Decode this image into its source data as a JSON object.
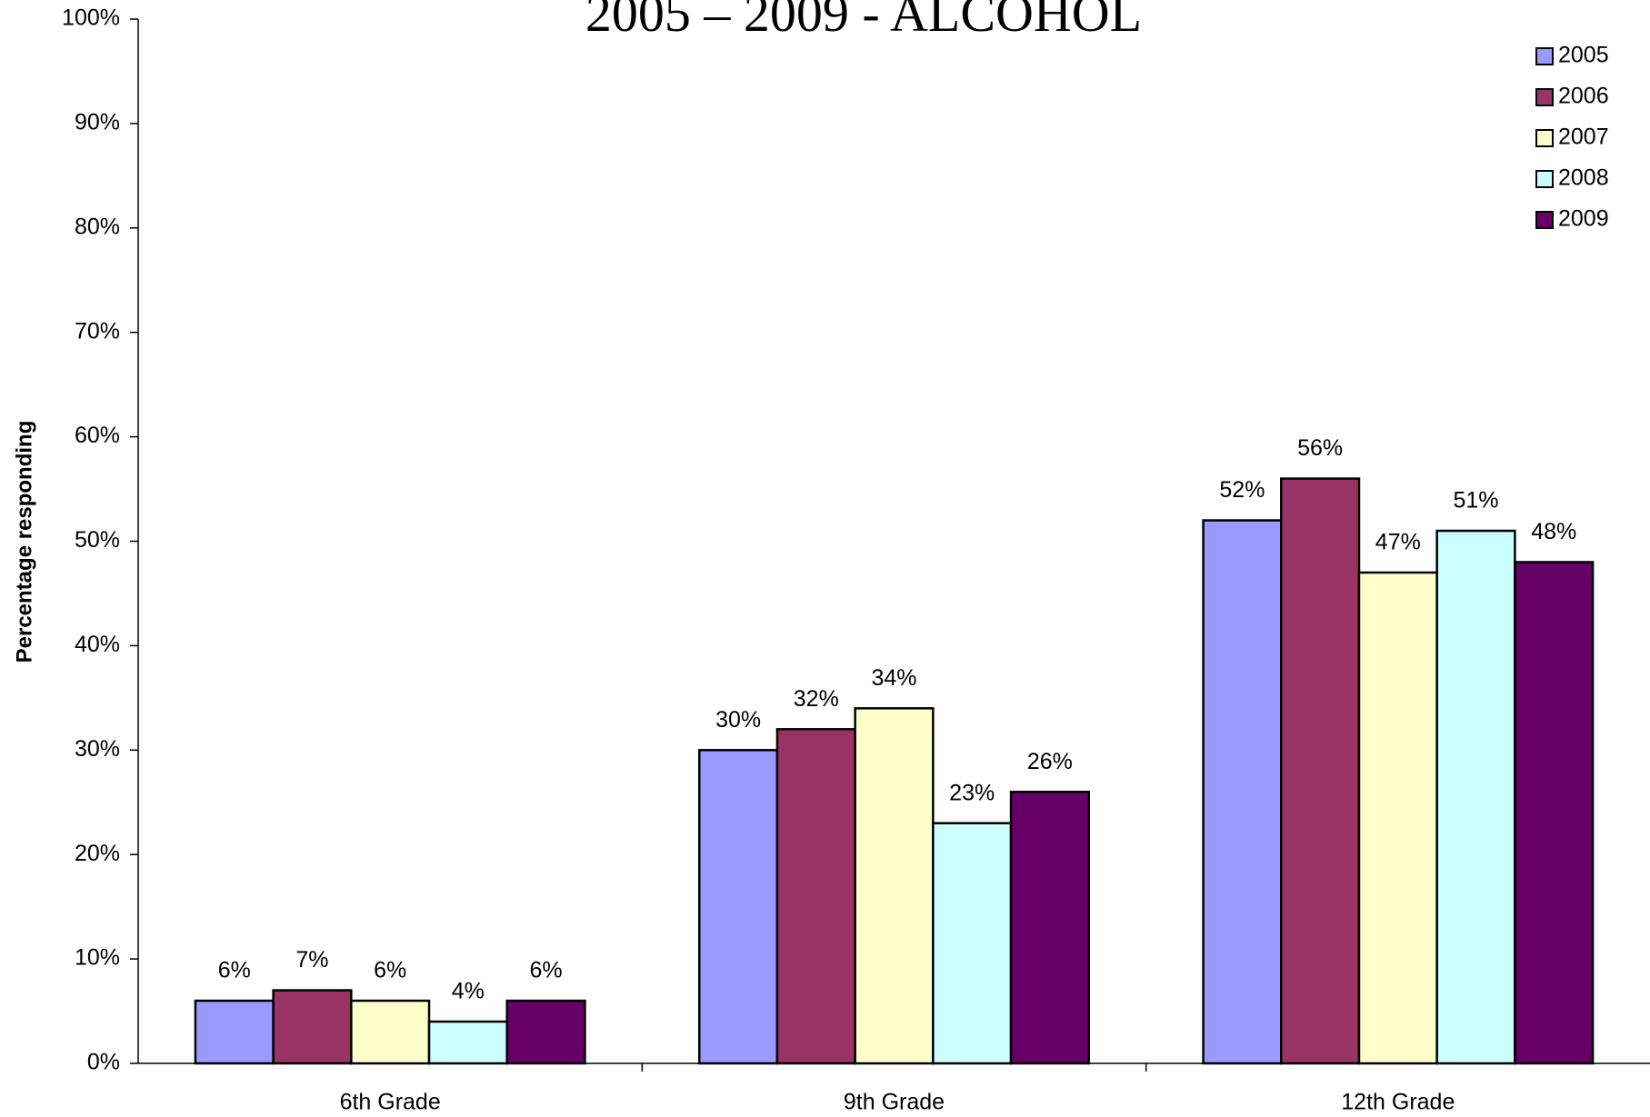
{
  "chart_data": {
    "type": "bar",
    "title": "2005 – 2009 - ALCOHOL",
    "y_label": "Percentage responding",
    "categories": [
      "6th Grade",
      "9th Grade",
      "12th Grade"
    ],
    "series": [
      {
        "name": "2005",
        "color": "#9999ff",
        "values": [
          6,
          30,
          52
        ],
        "value_labels": [
          "6%",
          "30%",
          "52%"
        ]
      },
      {
        "name": "2006",
        "color": "#993366",
        "values": [
          7,
          32,
          56
        ],
        "value_labels": [
          "7%",
          "32%",
          "56%"
        ]
      },
      {
        "name": "2007",
        "color": "#ffffcc",
        "values": [
          6,
          34,
          47
        ],
        "value_labels": [
          "6%",
          "34%",
          "47%"
        ]
      },
      {
        "name": "2008",
        "color": "#ccffff",
        "values": [
          4,
          23,
          51
        ],
        "value_labels": [
          "4%",
          "23%",
          "51%"
        ]
      },
      {
        "name": "2009",
        "color": "#660066",
        "values": [
          6,
          26,
          48
        ],
        "value_labels": [
          "6%",
          "26%",
          "48%"
        ]
      }
    ],
    "ylim": [
      0,
      100
    ],
    "yticks": [
      {
        "value": 0,
        "label": "0%"
      },
      {
        "value": 10,
        "label": "10%"
      },
      {
        "value": 20,
        "label": "20%"
      },
      {
        "value": 30,
        "label": "30%"
      },
      {
        "value": 40,
        "label": "40%"
      },
      {
        "value": 50,
        "label": "50%"
      },
      {
        "value": 60,
        "label": "60%"
      },
      {
        "value": 70,
        "label": "70%"
      },
      {
        "value": 80,
        "label": "80%"
      },
      {
        "value": 90,
        "label": "90%"
      },
      {
        "value": 100,
        "label": "100%"
      }
    ],
    "legend": "top-right"
  }
}
